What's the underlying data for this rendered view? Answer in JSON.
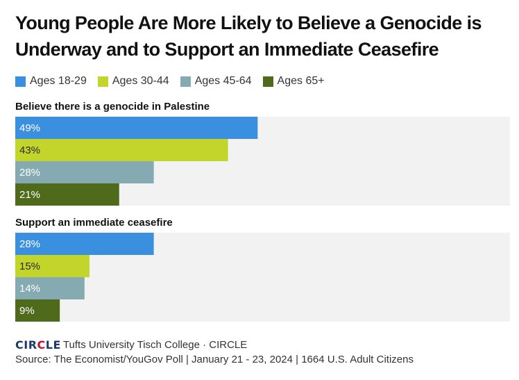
{
  "title": "Young People Are More Likely to Believe a Genocide is Underway and to Support an Immediate Ceasefire",
  "legend": [
    {
      "label": "Ages 18-29",
      "color": "#3a8fde"
    },
    {
      "label": "Ages 30-44",
      "color": "#c3d52a"
    },
    {
      "label": "Ages 45-64",
      "color": "#85aab2"
    },
    {
      "label": "Ages 65+",
      "color": "#4f6a1a"
    }
  ],
  "footer": {
    "logo_text": "CIRCLE",
    "brand": "Tufts University Tisch College · CIRCLE",
    "source": "Source: The Economist/YouGov Poll | January 21 - 23, 2024 | 1664 U.S. Adult Citizens"
  },
  "chart_data": {
    "type": "bar",
    "orientation": "horizontal",
    "xlim": [
      0,
      100
    ],
    "grid": false,
    "legend_position": "top-left",
    "series_names": [
      "Ages 18-29",
      "Ages 30-44",
      "Ages 45-64",
      "Ages 65+"
    ],
    "panels": [
      {
        "title": "Believe there is a genocide in Palestine",
        "values": [
          49,
          43,
          28,
          21
        ],
        "labels": [
          "49%",
          "43%",
          "28%",
          "21%"
        ]
      },
      {
        "title": "Support an immediate ceasefire",
        "values": [
          28,
          15,
          14,
          9
        ],
        "labels": [
          "28%",
          "15%",
          "14%",
          "9%"
        ]
      }
    ]
  }
}
